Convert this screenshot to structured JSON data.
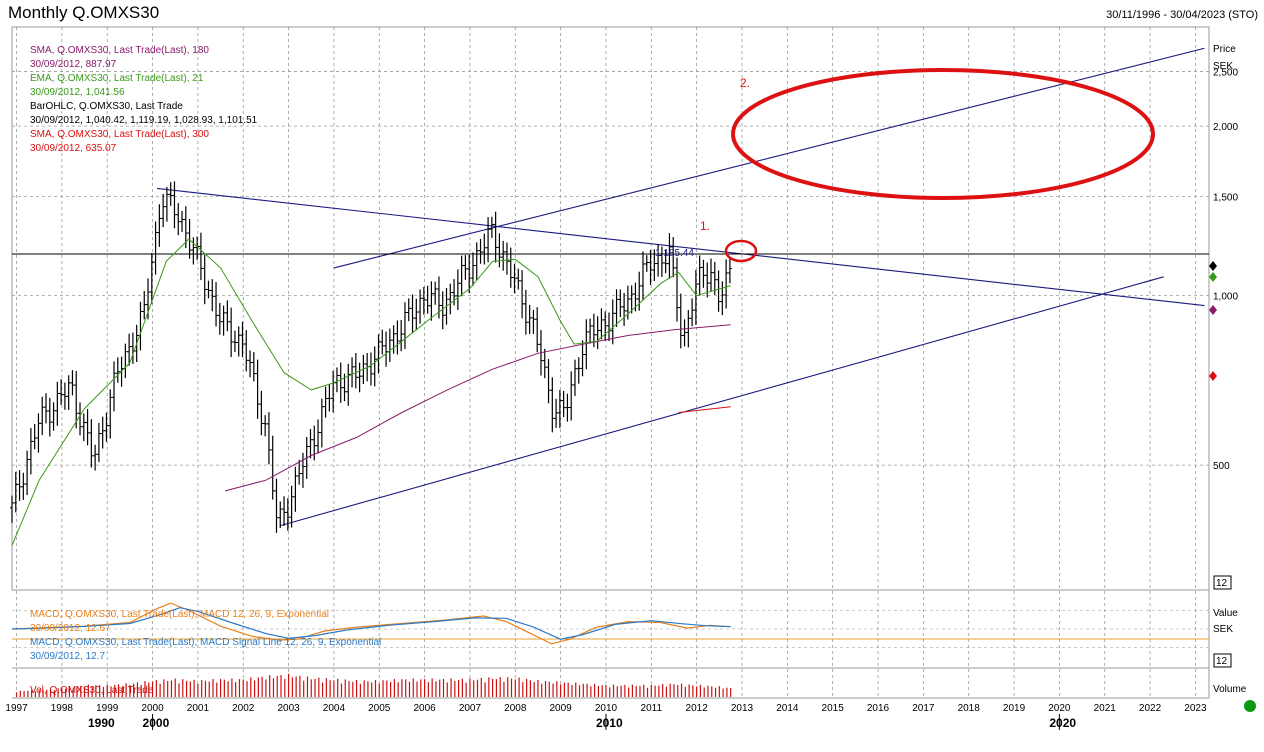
{
  "header": {
    "title": "Monthly Q.OMXS30",
    "date_range": "30/11/1996 - 30/04/2023 (STO)"
  },
  "legend": [
    {
      "text": "SMA, Q.OMXS30, Last Trade(Last), 180",
      "color": "#8b1a6b"
    },
    {
      "text": "30/09/2012, 887.97",
      "color": "#8b1a6b"
    },
    {
      "text": "EMA, Q.OMXS30, Last Trade(Last), 21",
      "color": "#3a9a1a"
    },
    {
      "text": "30/09/2012, 1,041.56",
      "color": "#3a9a1a"
    },
    {
      "text": "BarOHLC, Q.OMXS30, Last Trade",
      "color": "#000000"
    },
    {
      "text": "30/09/2012, 1,040.42, 1,119.19, 1,028.93, 1,101.51",
      "color": "#000000"
    },
    {
      "text": "SMA, Q.OMXS30, Last Trade(Last), 300",
      "color": "#dd1111"
    },
    {
      "text": "30/09/2012, 635.07",
      "color": "#dd1111"
    }
  ],
  "macd_legend": [
    {
      "text": "MACD, Q.OMXS30, Last Trade(Last), MACD 12, 26, 9, Exponential",
      "color": "#e8801a"
    },
    {
      "text": "30/09/2012, 12.67",
      "color": "#e8801a"
    },
    {
      "text": "MACD, Q.OMXS30, Last Trade(Last), MACD Signal Line 12, 26, 9, Exponential",
      "color": "#2a7ac8"
    },
    {
      "text": "30/09/2012, 12.7",
      "color": "#2a7ac8"
    }
  ],
  "vol_legend": {
    "text": "Vol, Q.OMXS30, Last Trade",
    "color": "#cc1111"
  },
  "axis_titles": {
    "price": [
      "Price",
      "SEK"
    ],
    "macd": [
      "Value",
      "SEK"
    ],
    "volume": "Volume"
  },
  "box_labels": {
    "price": "12",
    "macd": "12"
  },
  "annotations": {
    "label_1": "1.",
    "label_2": "2.",
    "hline_value_label": "1,185.44"
  },
  "colors": {
    "ohlc": "#000000",
    "sma180": "#8b1a6b",
    "ema21": "#3a9a1a",
    "sma300": "#dd1111",
    "trendline": "#1a1a80",
    "macd": "#e8801a",
    "signal": "#2a7ac8",
    "macd_zero": "#e8a030",
    "volume": "#cc1111",
    "grid": "#9a9a9a",
    "highlight": "#dd1111"
  },
  "chart_data": {
    "type": "bar",
    "title": "Monthly Q.OMXS30",
    "y_scale": "log",
    "ylim": [
      300,
      3000
    ],
    "xlim": [
      1996.9,
      2023.3
    ],
    "y_ticks": [
      500,
      1000,
      1500,
      2000,
      2500
    ],
    "y_tick_labels": [
      "500",
      "1,000",
      "1,500",
      "2,000",
      "2,500"
    ],
    "x_ticks": [
      1997,
      1998,
      1999,
      2000,
      2001,
      2002,
      2003,
      2004,
      2005,
      2006,
      2007,
      2008,
      2009,
      2010,
      2011,
      2012,
      2013,
      2014,
      2015,
      2016,
      2017,
      2018,
      2019,
      2020,
      2021,
      2022,
      2023
    ],
    "decade_labels": [
      {
        "x": 1990,
        "label": "1990"
      },
      {
        "x": 2000,
        "label": "2000"
      },
      {
        "x": 2010,
        "label": "2010"
      },
      {
        "x": 2020,
        "label": "2020"
      }
    ],
    "price_anchors": [
      [
        1996.9,
        420
      ],
      [
        1997.5,
        600
      ],
      [
        1998.2,
        690
      ],
      [
        1998.7,
        510
      ],
      [
        1999.2,
        720
      ],
      [
        1999.8,
        920
      ],
      [
        2000.2,
        1500
      ],
      [
        2000.6,
        1380
      ],
      [
        2001.0,
        1150
      ],
      [
        2001.5,
        900
      ],
      [
        2002.0,
        820
      ],
      [
        2002.5,
        580
      ],
      [
        2002.75,
        390
      ],
      [
        2003.0,
        430
      ],
      [
        2003.5,
        550
      ],
      [
        2004.0,
        700
      ],
      [
        2004.5,
        720
      ],
      [
        2005.0,
        790
      ],
      [
        2005.5,
        880
      ],
      [
        2006.0,
        1000
      ],
      [
        2006.4,
        960
      ],
      [
        2007.0,
        1130
      ],
      [
        2007.5,
        1300
      ],
      [
        2008.0,
        1050
      ],
      [
        2008.4,
        880
      ],
      [
        2008.8,
        640
      ],
      [
        2009.1,
        620
      ],
      [
        2009.5,
        830
      ],
      [
        2010.0,
        900
      ],
      [
        2010.5,
        980
      ],
      [
        2011.0,
        1150
      ],
      [
        2011.4,
        1180
      ],
      [
        2011.7,
        830
      ],
      [
        2012.0,
        1050
      ],
      [
        2012.3,
        1120
      ],
      [
        2012.5,
        980
      ],
      [
        2012.75,
        1100
      ]
    ],
    "series": [
      {
        "name": "SMA, Q.OMXS30, Last Trade(Last), 180",
        "points": [
          [
            2001.6,
            450
          ],
          [
            2002.5,
            470
          ],
          [
            2003.5,
            520
          ],
          [
            2004.5,
            560
          ],
          [
            2005.5,
            620
          ],
          [
            2006.5,
            680
          ],
          [
            2007.5,
            740
          ],
          [
            2008.5,
            790
          ],
          [
            2009.5,
            820
          ],
          [
            2010.5,
            850
          ],
          [
            2011.5,
            870
          ],
          [
            2012.75,
            888
          ]
        ]
      },
      {
        "name": "EMA, Q.OMXS30, Last Trade(Last), 21",
        "points": [
          [
            1996.9,
            360
          ],
          [
            1997.5,
            470
          ],
          [
            1998.5,
            630
          ],
          [
            1999.5,
            760
          ],
          [
            2000.3,
            1150
          ],
          [
            2000.8,
            1260
          ],
          [
            2001.5,
            1120
          ],
          [
            2002.2,
            900
          ],
          [
            2002.9,
            730
          ],
          [
            2003.5,
            680
          ],
          [
            2004.0,
            700
          ],
          [
            2004.8,
            750
          ],
          [
            2005.5,
            830
          ],
          [
            2006.2,
            920
          ],
          [
            2007.0,
            1030
          ],
          [
            2007.5,
            1150
          ],
          [
            2008.0,
            1160
          ],
          [
            2008.5,
            1080
          ],
          [
            2009.0,
            900
          ],
          [
            2009.3,
            820
          ],
          [
            2009.8,
            830
          ],
          [
            2010.5,
            930
          ],
          [
            2011.2,
            1050
          ],
          [
            2011.6,
            1100
          ],
          [
            2012.0,
            1000
          ],
          [
            2012.75,
            1042
          ]
        ]
      },
      {
        "name": "SMA, Q.OMXS30, Last Trade(Last), 300",
        "points": [
          [
            2011.6,
            620
          ],
          [
            2012.75,
            635
          ]
        ]
      }
    ],
    "trendlines": [
      {
        "from": [
          2000.1,
          1550
        ],
        "to": [
          2023.2,
          960
        ]
      },
      {
        "from": [
          2004.0,
          1120
        ],
        "to": [
          2023.2,
          2750
        ]
      },
      {
        "from": [
          2002.8,
          390
        ],
        "to": [
          2022.3,
          1080
        ]
      }
    ],
    "horizontal_line": {
      "value": 1185.44,
      "label": "1,185.44"
    },
    "macd_range": [
      -200,
      200
    ],
    "macd": [
      [
        1996.9,
        0
      ],
      [
        1997.5,
        5
      ],
      [
        1998.5,
        15
      ],
      [
        1999.5,
        35
      ],
      [
        2000.1,
        110
      ],
      [
        2000.4,
        140
      ],
      [
        2000.8,
        100
      ],
      [
        2001.5,
        15
      ],
      [
        2002.2,
        -40
      ],
      [
        2002.8,
        -60
      ],
      [
        2003.2,
        -55
      ],
      [
        2003.8,
        -10
      ],
      [
        2004.5,
        10
      ],
      [
        2005.5,
        30
      ],
      [
        2006.5,
        50
      ],
      [
        2007.3,
        70
      ],
      [
        2007.8,
        40
      ],
      [
        2008.3,
        -20
      ],
      [
        2008.8,
        -80
      ],
      [
        2009.2,
        -55
      ],
      [
        2009.8,
        10
      ],
      [
        2010.5,
        40
      ],
      [
        2011.2,
        35
      ],
      [
        2011.8,
        5
      ],
      [
        2012.3,
        20
      ],
      [
        2012.75,
        12.67
      ]
    ],
    "signal": [
      [
        1996.9,
        0
      ],
      [
        1997.5,
        5
      ],
      [
        1998.5,
        14
      ],
      [
        1999.5,
        30
      ],
      [
        2000.2,
        80
      ],
      [
        2000.6,
        115
      ],
      [
        2001.0,
        95
      ],
      [
        2001.8,
        30
      ],
      [
        2002.5,
        -25
      ],
      [
        2003.0,
        -50
      ],
      [
        2003.6,
        -35
      ],
      [
        2004.3,
        -5
      ],
      [
        2005.2,
        20
      ],
      [
        2006.2,
        40
      ],
      [
        2007.1,
        60
      ],
      [
        2007.8,
        58
      ],
      [
        2008.4,
        10
      ],
      [
        2009.0,
        -55
      ],
      [
        2009.5,
        -30
      ],
      [
        2010.2,
        25
      ],
      [
        2011.0,
        45
      ],
      [
        2011.7,
        28
      ],
      [
        2012.2,
        18
      ],
      [
        2012.75,
        12.7
      ]
    ],
    "volume_range": [
      0,
      100
    ],
    "volume": [
      [
        1997.0,
        20
      ],
      [
        1997.5,
        25
      ],
      [
        1998.0,
        30
      ],
      [
        1998.5,
        40
      ],
      [
        1999.0,
        40
      ],
      [
        1999.5,
        45
      ],
      [
        2000.0,
        55
      ],
      [
        2000.5,
        60
      ],
      [
        2001.0,
        55
      ],
      [
        2001.5,
        60
      ],
      [
        2002.0,
        60
      ],
      [
        2002.5,
        70
      ],
      [
        2003.0,
        75
      ],
      [
        2003.5,
        65
      ],
      [
        2004.0,
        60
      ],
      [
        2004.5,
        55
      ],
      [
        2005.0,
        55
      ],
      [
        2005.5,
        60
      ],
      [
        2006.0,
        60
      ],
      [
        2006.5,
        60
      ],
      [
        2007.0,
        60
      ],
      [
        2007.5,
        65
      ],
      [
        2008.0,
        65
      ],
      [
        2008.5,
        55
      ],
      [
        2009.0,
        50
      ],
      [
        2009.5,
        45
      ],
      [
        2010.0,
        40
      ],
      [
        2010.5,
        40
      ],
      [
        2011.0,
        40
      ],
      [
        2011.5,
        45
      ],
      [
        2012.0,
        40
      ],
      [
        2012.5,
        35
      ],
      [
        2012.75,
        30
      ]
    ]
  }
}
